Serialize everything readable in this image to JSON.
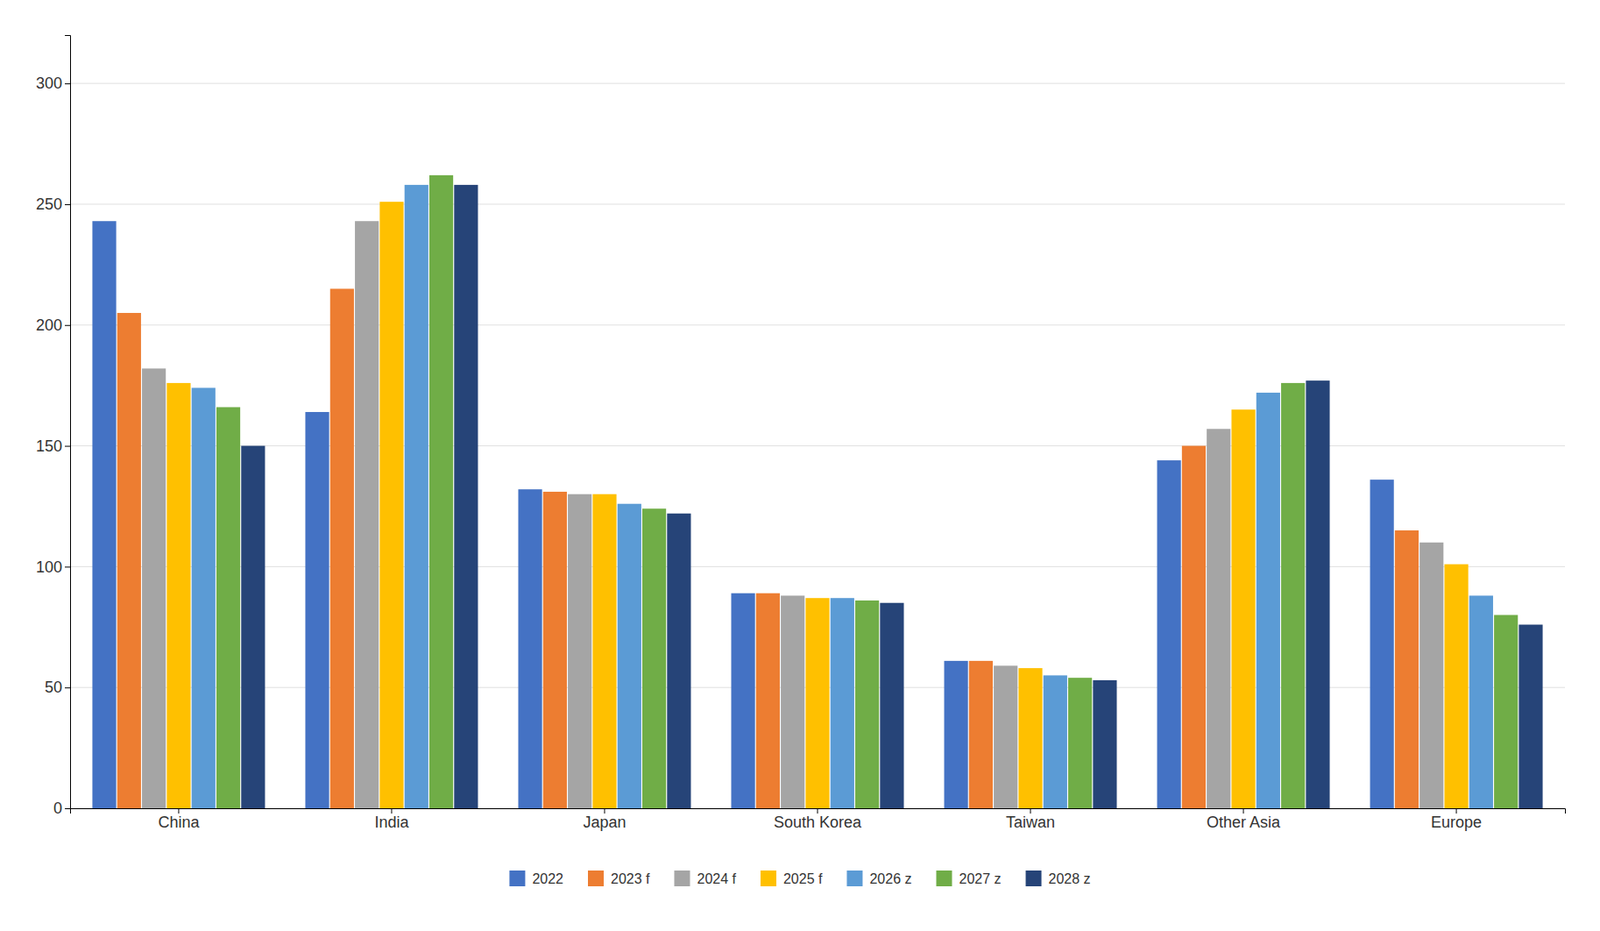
{
  "chart_data": {
    "type": "bar",
    "categories": [
      "China",
      "India",
      "Japan",
      "South Korea",
      "Taiwan",
      "Other Asia",
      "Europe"
    ],
    "series": [
      {
        "name": "2022",
        "color": "#4472C4",
        "values": [
          243,
          164,
          132,
          89,
          61,
          144,
          136
        ]
      },
      {
        "name": "2023 f",
        "color": "#ED7D31",
        "values": [
          205,
          215,
          131,
          89,
          61,
          150,
          115
        ]
      },
      {
        "name": "2024 f",
        "color": "#A5A5A5",
        "values": [
          182,
          243,
          130,
          88,
          59,
          157,
          110
        ]
      },
      {
        "name": "2025 f",
        "color": "#FFC000",
        "values": [
          176,
          251,
          130,
          87,
          58,
          165,
          101
        ]
      },
      {
        "name": "2026 z",
        "color": "#5B9BD5",
        "values": [
          174,
          258,
          126,
          87,
          55,
          172,
          88
        ]
      },
      {
        "name": "2027 z",
        "color": "#70AD47",
        "values": [
          166,
          262,
          124,
          86,
          54,
          176,
          80
        ]
      },
      {
        "name": "2028 z",
        "color": "#264478",
        "values": [
          150,
          258,
          122,
          85,
          53,
          177,
          76
        ]
      }
    ],
    "ylim": [
      0,
      320
    ],
    "yticks": [
      0,
      50,
      100,
      150,
      200,
      250,
      300
    ],
    "grid": true,
    "legend": "bottom"
  }
}
